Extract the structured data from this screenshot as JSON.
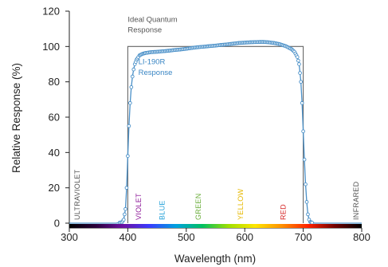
{
  "chart_data": {
    "type": "line",
    "xlabel": "Wavelength (nm)",
    "ylabel": "Relative Response (%)",
    "xlim": [
      300,
      800
    ],
    "ylim": [
      0,
      120
    ],
    "x_ticks": [
      300,
      400,
      500,
      600,
      700,
      800
    ],
    "y_ticks": [
      0,
      20,
      40,
      60,
      80,
      100,
      120
    ],
    "grid": false,
    "series": [
      {
        "name": "LI-190R Response",
        "color": "#4a90c8",
        "marker": "open-circle",
        "x": [
          300,
          360,
          380,
          390,
          393,
          396,
          398,
          400,
          402,
          404,
          406,
          408,
          410,
          412,
          415,
          418,
          420,
          425,
          430,
          440,
          450,
          460,
          470,
          480,
          490,
          500,
          510,
          520,
          530,
          540,
          550,
          560,
          570,
          580,
          590,
          600,
          610,
          620,
          630,
          640,
          650,
          660,
          670,
          680,
          685,
          690,
          693,
          696,
          698,
          700,
          702,
          704,
          706,
          708,
          710,
          712,
          715,
          720,
          740,
          760,
          780,
          800
        ],
        "y": [
          0,
          0,
          0,
          0.5,
          2,
          8,
          20,
          38,
          55,
          68,
          77,
          83,
          87,
          90,
          92.5,
          94,
          95,
          95.8,
          96.3,
          96.8,
          97,
          97.3,
          97.6,
          98,
          98.3,
          98.7,
          99.2,
          99.6,
          99.9,
          100.2,
          100.5,
          100.9,
          101.2,
          101.6,
          102,
          102.2,
          102.4,
          102.5,
          102.6,
          102.4,
          102,
          101.3,
          100.2,
          98.5,
          97,
          94,
          90,
          80,
          68,
          52,
          36,
          22,
          12,
          5,
          2,
          0.7,
          0.3,
          0,
          0,
          0,
          0,
          0
        ]
      },
      {
        "name": "Ideal Quantum Response",
        "color": "#666666",
        "x": [
          400,
          400,
          700,
          700
        ],
        "y": [
          0,
          100,
          100,
          0
        ]
      }
    ],
    "annotations": [
      {
        "text": "Ideal Quantum",
        "x": 400,
        "y": 114
      },
      {
        "text": "Response",
        "x": 400,
        "y": 108
      },
      {
        "text": "LI-190R",
        "x": 418,
        "y": 90
      },
      {
        "text": "Response",
        "x": 418,
        "y": 84
      }
    ],
    "bands": [
      {
        "label": "ULTRAVIOLET",
        "x": 313,
        "color": "#555555"
      },
      {
        "label": "VIOLET",
        "x": 418,
        "color": "#8e1a99"
      },
      {
        "label": "BLUE",
        "x": 458,
        "color": "#1f9fd8"
      },
      {
        "label": "GREEN",
        "x": 520,
        "color": "#6aad3a"
      },
      {
        "label": "YELLOW",
        "x": 592,
        "color": "#e6b800"
      },
      {
        "label": "RED",
        "x": 665,
        "color": "#d62828"
      },
      {
        "label": "INFRARED",
        "x": 790,
        "color": "#555555"
      }
    ],
    "spectrum_colors": [
      "#000000",
      "#2a003a",
      "#6b0fa0",
      "#3a3aff",
      "#00a0e0",
      "#00c060",
      "#a0e000",
      "#ffe600",
      "#ff9000",
      "#ff2000",
      "#700000",
      "#000000"
    ]
  }
}
